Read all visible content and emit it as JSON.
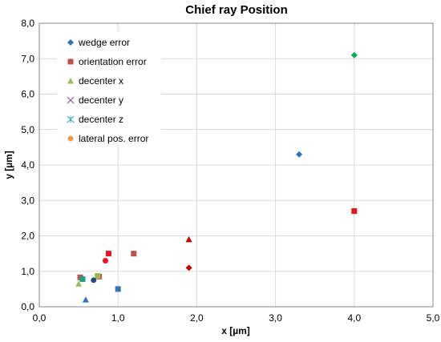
{
  "chart_data": {
    "type": "scatter",
    "title": "Chief ray  Position",
    "xlabel": "x [µm]",
    "ylabel": "y [µm]",
    "xlim": [
      0,
      5
    ],
    "ylim": [
      0,
      8
    ],
    "x_ticks": [
      "0,0",
      "1,0",
      "2,0",
      "3,0",
      "4,0",
      "5,0"
    ],
    "y_ticks": [
      "0,0",
      "1,0",
      "2,0",
      "3,0",
      "4,0",
      "5,0",
      "6,0",
      "7,0",
      "8,0"
    ],
    "grid": true,
    "legend_position": "top-left",
    "legend": [
      {
        "name": "wedge error",
        "marker": "diamond",
        "color": "#2E75B6"
      },
      {
        "name": "orientation error",
        "marker": "square",
        "color": "#C0504D"
      },
      {
        "name": "decenter x",
        "marker": "triangle",
        "color": "#9BBB59"
      },
      {
        "name": "decenter y",
        "marker": "x",
        "color": "#8064A2"
      },
      {
        "name": "decenter z",
        "marker": "star",
        "color": "#4BACC6"
      },
      {
        "name": "lateral pos. error",
        "marker": "circle",
        "color": "#F79646"
      }
    ],
    "points": [
      {
        "x": 3.3,
        "y": 4.3,
        "marker": "diamond",
        "color": "#2E75B6"
      },
      {
        "x": 4.0,
        "y": 7.1,
        "marker": "diamond",
        "color": "#00B050"
      },
      {
        "x": 4.0,
        "y": 2.7,
        "marker": "square",
        "color": "#E8141E"
      },
      {
        "x": 1.2,
        "y": 1.5,
        "marker": "square",
        "color": "#C0504D"
      },
      {
        "x": 0.88,
        "y": 1.5,
        "marker": "square",
        "color": "#E8141E"
      },
      {
        "x": 1.9,
        "y": 1.9,
        "marker": "triangle",
        "color": "#C00000"
      },
      {
        "x": 1.9,
        "y": 1.1,
        "marker": "diamond",
        "color": "#C00000"
      },
      {
        "x": 0.84,
        "y": 1.3,
        "marker": "circle",
        "color": "#E8141E"
      },
      {
        "x": 0.76,
        "y": 0.85,
        "marker": "square",
        "color": "#C0504D"
      },
      {
        "x": 0.74,
        "y": 0.87,
        "marker": "square",
        "color": "#9BBB59"
      },
      {
        "x": 0.69,
        "y": 0.75,
        "marker": "circle",
        "color": "#1F4E79"
      },
      {
        "x": 0.52,
        "y": 0.83,
        "marker": "square",
        "color": "#C0504D"
      },
      {
        "x": 0.55,
        "y": 0.78,
        "marker": "square",
        "color": "#17A589"
      },
      {
        "x": 0.5,
        "y": 0.65,
        "marker": "triangle",
        "color": "#9BBB59"
      },
      {
        "x": 1.0,
        "y": 0.5,
        "marker": "square",
        "color": "#2E75B6"
      },
      {
        "x": 0.59,
        "y": 0.2,
        "marker": "triangle",
        "color": "#2E75B6"
      }
    ]
  }
}
